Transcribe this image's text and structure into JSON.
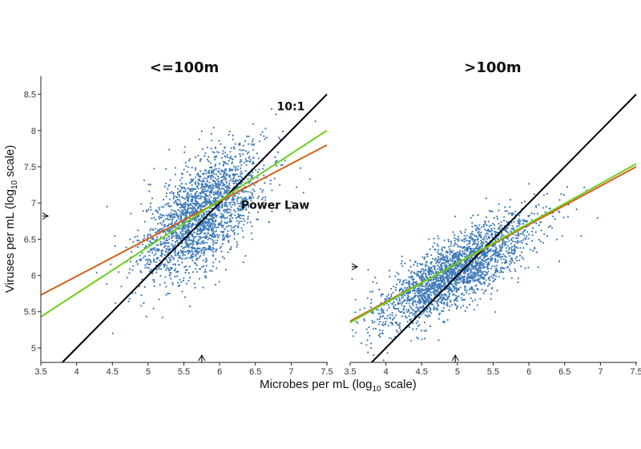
{
  "figure": {
    "xlabel": "Microbes per mL (log",
    "xlabel_sub": "10",
    "xlabel_tail": " scale)",
    "ylabel": "Viruses per mL (log",
    "ylabel_sub": "10",
    "ylabel_tail": " scale)"
  },
  "colors": {
    "points": "#3d7ab8",
    "ratio_line": "#000000",
    "power_law": "#d2601a",
    "regression": "#6ccf1c"
  },
  "chart_data": [
    {
      "type": "scatter",
      "title": "<=100m",
      "xlim": [
        3.5,
        7.5
      ],
      "ylim": [
        4.8,
        8.75
      ],
      "xticks": [
        3.5,
        4,
        4.5,
        5,
        5.5,
        6,
        6.5,
        7,
        7.5
      ],
      "yticks": [
        5,
        5.5,
        6,
        6.5,
        7,
        7.5,
        8,
        8.5
      ],
      "xtick_labels": [
        "3.5",
        "4",
        "4.5",
        "5",
        "5.5",
        "6",
        "6.5",
        "7",
        "7.5"
      ],
      "ytick_labels": [
        "5",
        "5.5",
        "6",
        "6.5",
        "7",
        "7.5",
        "8",
        "8.5"
      ],
      "series": [
        {
          "name": "10:1",
          "kind": "line",
          "color": "#000000",
          "x": [
            3.8,
            7.5
          ],
          "y": [
            4.8,
            8.5
          ]
        },
        {
          "name": "",
          "kind": "line",
          "color": "#d2601a",
          "x": [
            3.5,
            7.5
          ],
          "y": [
            5.73,
            7.8
          ]
        },
        {
          "name": "Power Law",
          "kind": "line",
          "color": "#6ccf1c",
          "x": [
            3.5,
            7.5
          ],
          "y": [
            5.43,
            8.0
          ]
        }
      ],
      "scatter": {
        "count": 2200,
        "x_mean": 5.75,
        "y_mean": 6.85,
        "x_sd": 0.42,
        "y_sd": 0.45,
        "correlation": 0.6
      },
      "x_marker": 5.75,
      "y_marker": 6.82,
      "annotations": [
        {
          "text": "10:1",
          "x": 6.8,
          "y": 8.28
        },
        {
          "text": "Power Law",
          "x": 6.3,
          "y": 6.92
        }
      ]
    },
    {
      "type": "scatter",
      "title": ">100m",
      "xlim": [
        3.5,
        7.5
      ],
      "ylim": [
        4.8,
        8.75
      ],
      "xticks": [
        3.5,
        4,
        4.5,
        5,
        5.5,
        6,
        6.5,
        7,
        7.5
      ],
      "yticks": [],
      "xtick_labels": [
        "3.5",
        "4",
        "4.5",
        "5",
        "5.5",
        "6",
        "6.5",
        "7",
        "7.5"
      ],
      "ytick_labels": [],
      "series": [
        {
          "name": "10:1",
          "kind": "line",
          "color": "#000000",
          "x": [
            3.8,
            7.5
          ],
          "y": [
            4.8,
            8.5
          ]
        },
        {
          "name": "",
          "kind": "line",
          "color": "#d2601a",
          "x": [
            3.5,
            7.5
          ],
          "y": [
            5.37,
            7.5
          ]
        },
        {
          "name": "Power Law",
          "kind": "line",
          "color": "#6ccf1c",
          "x": [
            3.5,
            7.5
          ],
          "y": [
            5.35,
            7.54
          ]
        }
      ],
      "scatter": {
        "count": 2400,
        "x_mean": 4.97,
        "y_mean": 6.05,
        "x_sd": 0.55,
        "y_sd": 0.38,
        "correlation": 0.78
      },
      "x_marker": 4.97,
      "y_marker": 6.12,
      "annotations": []
    }
  ]
}
